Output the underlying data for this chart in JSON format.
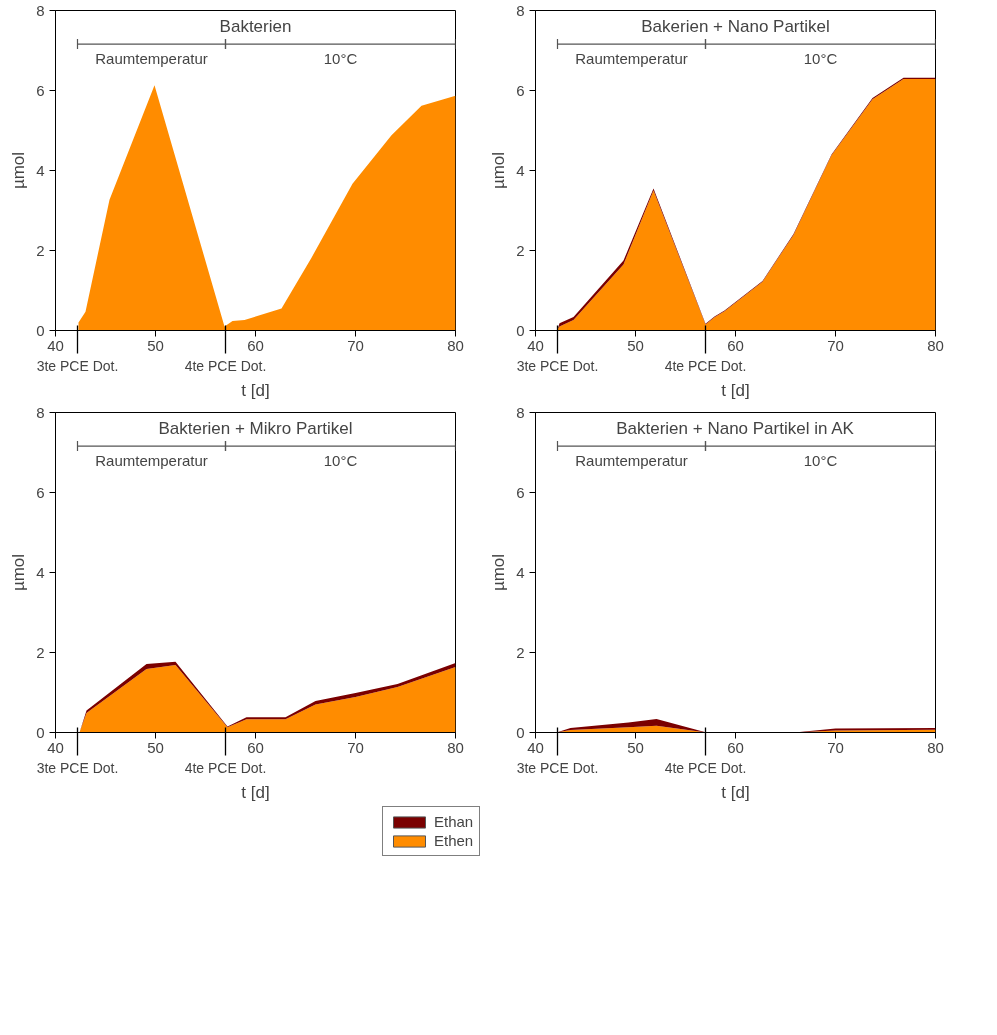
{
  "chart_data": [
    {
      "type": "area",
      "stacked": true,
      "title": "Bakterien",
      "xlabel": "t [d]",
      "ylabel": "µmol",
      "xlim": [
        40,
        80
      ],
      "xticks": [
        40,
        50,
        60,
        70,
        80
      ],
      "ylim": [
        0,
        8
      ],
      "yticks": [
        0,
        2,
        4,
        6,
        8
      ],
      "grid": false,
      "x": [
        42.3,
        43.0,
        45.4,
        49.9,
        56.9,
        57.7,
        58.9,
        62.6,
        65.6,
        69.7,
        73.6,
        76.6,
        80
      ],
      "series": [
        {
          "color": "#ff8c00",
          "values": [
            0.2,
            0.47,
            3.27,
            6.13,
            0.1,
            0.24,
            0.26,
            0.55,
            1.82,
            3.67,
            4.88,
            5.62,
            5.87
          ]
        }
      ],
      "ref_lines": [
        {
          "axis": "x",
          "value": 42.2,
          "label": "3te PCE Dot."
        },
        {
          "axis": "x",
          "value": 57.0,
          "label": "4te PCE Dot."
        }
      ],
      "annotations": [
        "Raumtemperatur",
        "10°C"
      ]
    },
    {
      "type": "area",
      "stacked": true,
      "title": "Bakerien + Nano Partikel",
      "xlabel": "t [d]",
      "ylabel": "µmol",
      "xlim": [
        40,
        80
      ],
      "xticks": [
        40,
        50,
        60,
        70,
        80
      ],
      "ylim": [
        0,
        8
      ],
      "yticks": [
        0,
        2,
        4,
        6,
        8
      ],
      "grid": false,
      "x": [
        42.2,
        42.4,
        43.8,
        48.8,
        51.8,
        57.0,
        57.9,
        58.9,
        62.7,
        65.8,
        69.6,
        73.7,
        76.8,
        80
      ],
      "series": [
        {
          "color": "#ff8c00",
          "values": [
            0.03,
            0.1,
            0.26,
            1.65,
            3.5,
            0.15,
            0.33,
            0.48,
            1.22,
            2.39,
            4.38,
            5.78,
            6.29,
            6.29
          ]
        },
        {
          "color": "#7a0000",
          "values": [
            0,
            0.08,
            0.08,
            0.1,
            0.05,
            0.02,
            0.02,
            0.02,
            0.02,
            0.02,
            0.02,
            0.03,
            0.03,
            0.03
          ]
        }
      ],
      "ref_lines": [
        {
          "axis": "x",
          "value": 42.2,
          "label": "3te PCE Dot."
        },
        {
          "axis": "x",
          "value": 57.0,
          "label": "4te PCE Dot."
        }
      ],
      "annotations": [
        "Raumtemperatur",
        "10°C"
      ]
    },
    {
      "type": "area",
      "stacked": true,
      "title": "Bakterien + Mikro Partikel",
      "xlabel": "t [d]",
      "ylabel": "µmol",
      "xlim": [
        40,
        80
      ],
      "xticks": [
        40,
        50,
        60,
        70,
        80
      ],
      "ylim": [
        0,
        8
      ],
      "yticks": [
        0,
        2,
        4,
        6,
        8
      ],
      "grid": false,
      "legend": "bottom right",
      "x": [
        42.4,
        43.1,
        49.1,
        52.0,
        57.2,
        59.1,
        63.0,
        66.0,
        70.0,
        74.2,
        80
      ],
      "series": [
        {
          "name": "Ethen",
          "color": "#ff8c00",
          "values": [
            0,
            0.49,
            1.59,
            1.69,
            0.13,
            0.33,
            0.33,
            0.7,
            0.89,
            1.14,
            1.64
          ]
        },
        {
          "name": "Ethan",
          "color": "#7a0000",
          "values": [
            0,
            0.06,
            0.12,
            0.08,
            0.02,
            0.05,
            0.05,
            0.09,
            0.1,
            0.07,
            0.1
          ]
        }
      ],
      "ref_lines": [
        {
          "axis": "x",
          "value": 42.2,
          "label": "3te PCE Dot."
        },
        {
          "axis": "x",
          "value": 57.0,
          "label": "4te PCE Dot."
        }
      ],
      "annotations": [
        "Raumtemperatur",
        "10°C"
      ]
    },
    {
      "type": "area",
      "stacked": true,
      "title": "Bakterien + Nano Partikel in AK",
      "xlabel": "t [d]",
      "ylabel": "µmol",
      "xlim": [
        40,
        80
      ],
      "xticks": [
        40,
        50,
        60,
        70,
        80
      ],
      "ylim": [
        0,
        8
      ],
      "yticks": [
        0,
        2,
        4,
        6,
        8
      ],
      "grid": false,
      "x": [
        42.1,
        43.5,
        49.3,
        52.1,
        57.1,
        59.2,
        63.2,
        65.9,
        70,
        80
      ],
      "series": [
        {
          "color": "#ff8c00",
          "values": [
            0,
            0.06,
            0.13,
            0.17,
            null,
            null,
            null,
            null,
            0.05,
            0.07
          ]
        },
        {
          "color": "#7a0000",
          "values": [
            0,
            0.05,
            0.12,
            0.17,
            null,
            null,
            null,
            null,
            0.05,
            0.04
          ]
        }
      ],
      "ref_lines": [
        {
          "axis": "x",
          "value": 42.2,
          "label": "3te PCE Dot."
        },
        {
          "axis": "x",
          "value": 57.0,
          "label": "4te PCE Dot."
        }
      ],
      "annotations": [
        "Raumtemperatur",
        "10°C"
      ]
    }
  ]
}
